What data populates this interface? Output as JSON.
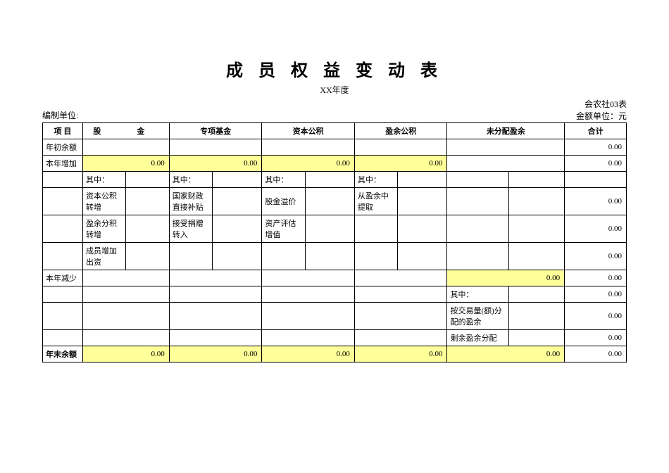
{
  "title": "成 员 权 益 变 动 表",
  "subtitle": "XX年度",
  "form_code": "会农社03表",
  "unit_label": "金额单位：元",
  "org_label": "编制单位:",
  "headers": {
    "item": "项 目",
    "capital": "股　金",
    "special_fund": "专项基金",
    "capital_reserve": "资本公积",
    "surplus_reserve": "盈余公积",
    "undist_profit": "未分配盈余",
    "total": "合计"
  },
  "rows": {
    "begin_balance": "年初余额",
    "this_year_inc": "本年增加",
    "of_which": "其中：",
    "r3_a": "资本公积转增",
    "r3_b": "国家财政直接补贴",
    "r3_c": "股金溢价",
    "r3_d": "从盈余中提取",
    "r4_a": "盈余分积转增",
    "r4_b": "接受捐赠转入",
    "r4_c": "资产评估增值",
    "r5_a": "成员增加出资",
    "this_year_dec": "本年减少",
    "r7_a": "按交易量(额)分配的盈余",
    "r8_a": "剩余盈余分配",
    "end_balance": "年末余额"
  },
  "values": {
    "v_zero": "0.00"
  },
  "colors": {
    "highlight": "#ffff99",
    "border": "#000000",
    "background": "#ffffff"
  }
}
